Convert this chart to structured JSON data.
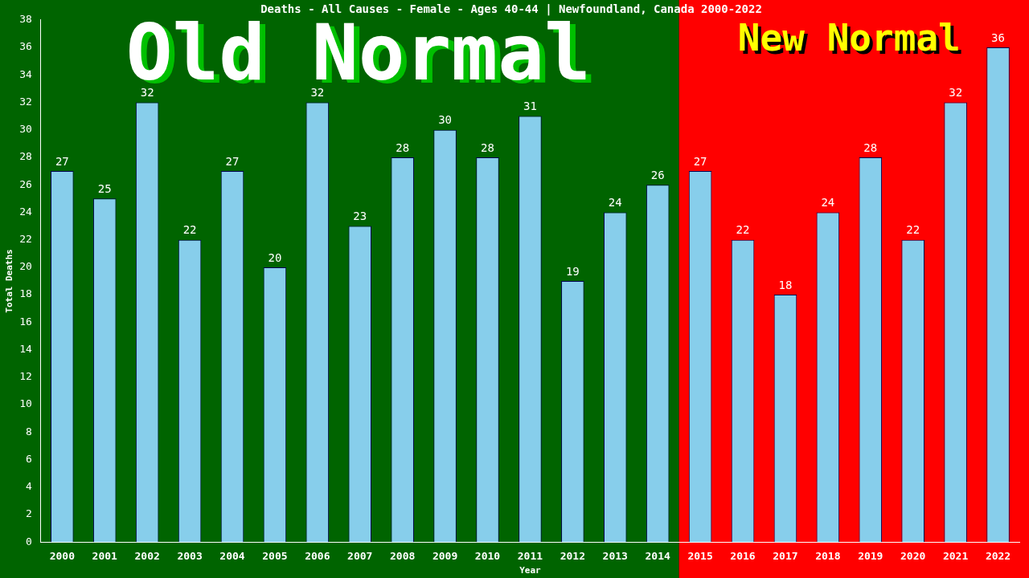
{
  "chart_data": {
    "type": "bar",
    "title": "Deaths - All Causes - Female - Ages 40-44 | Newfoundland, Canada 2000-2022",
    "xlabel": "Year",
    "ylabel": "Total Deaths",
    "categories": [
      "2000",
      "2001",
      "2002",
      "2003",
      "2004",
      "2005",
      "2006",
      "2007",
      "2008",
      "2009",
      "2010",
      "2011",
      "2012",
      "2013",
      "2014",
      "2015",
      "2016",
      "2017",
      "2018",
      "2019",
      "2020",
      "2021",
      "2022"
    ],
    "values": [
      27,
      25,
      32,
      22,
      27,
      20,
      32,
      23,
      28,
      30,
      28,
      31,
      19,
      24,
      26,
      27,
      22,
      18,
      24,
      28,
      22,
      32,
      36
    ],
    "color": "#87ceeb",
    "ylim": [
      0,
      38
    ],
    "yticks": [
      0,
      2,
      4,
      6,
      8,
      10,
      12,
      14,
      16,
      18,
      20,
      22,
      24,
      26,
      28,
      30,
      32,
      34,
      36,
      38
    ],
    "grid": false,
    "legend": false,
    "data_labels": true,
    "bands": [
      {
        "axis": "x",
        "from": "2000",
        "to": "2014",
        "label": "Old Normal",
        "color": "#006400"
      },
      {
        "axis": "x",
        "from": "2015",
        "to": "2022",
        "label": "New Normal",
        "color": "#ff0000"
      }
    ]
  }
}
